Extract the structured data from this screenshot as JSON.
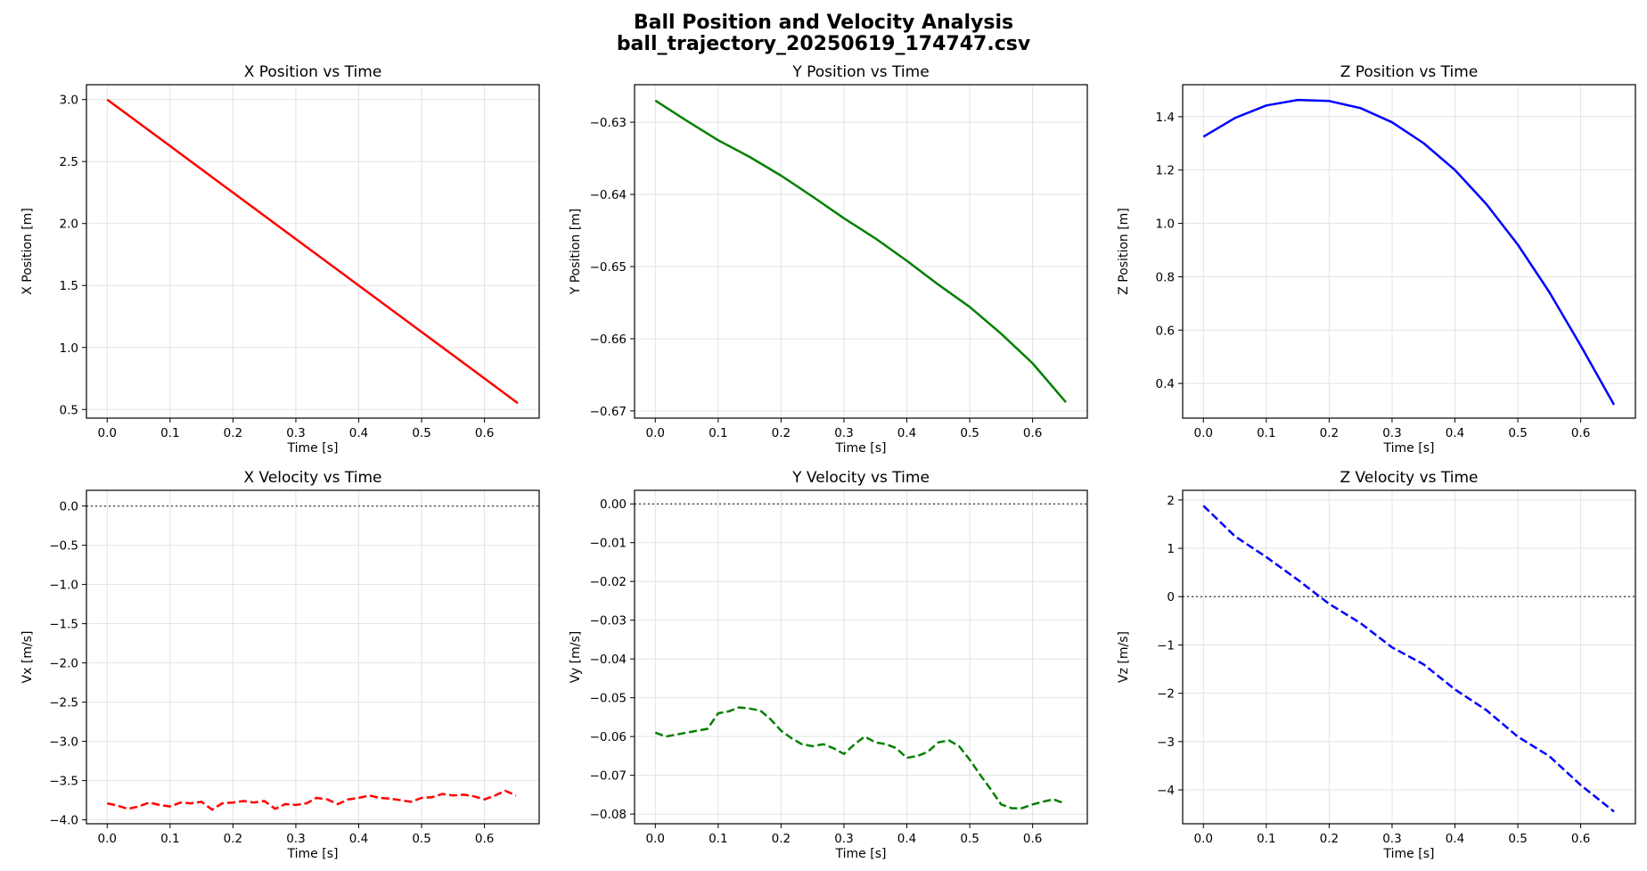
{
  "figure": {
    "title_line1": "Ball Position and Velocity Analysis",
    "title_line2": "ball_trajectory_20250619_174747.csv"
  },
  "chart_data": [
    {
      "type": "line",
      "title": "X Position vs Time",
      "xlabel": "Time [s]",
      "ylabel": "X Position [m]",
      "xlim": [
        -0.033,
        0.687
      ],
      "ylim": [
        0.43,
        3.12
      ],
      "xticks": [
        0.0,
        0.1,
        0.2,
        0.3,
        0.4,
        0.5,
        0.6
      ],
      "yticks": [
        0.5,
        1.0,
        1.5,
        2.0,
        2.5,
        3.0
      ],
      "ytick_decimals": 1,
      "grid": true,
      "series": [
        {
          "color": "#ff0000",
          "linestyle": "solid",
          "x": [
            0.0,
            0.1,
            0.2,
            0.3,
            0.4,
            0.5,
            0.6,
            0.653
          ],
          "y": [
            3.0,
            2.625,
            2.25,
            1.875,
            1.5,
            1.125,
            0.75,
            0.55
          ]
        }
      ]
    },
    {
      "type": "line",
      "title": "Y Position vs Time",
      "xlabel": "Time [s]",
      "ylabel": "Y Position [m]",
      "xlim": [
        -0.033,
        0.687
      ],
      "ylim": [
        -0.671,
        -0.6248
      ],
      "xticks": [
        0.0,
        0.1,
        0.2,
        0.3,
        0.4,
        0.5,
        0.6
      ],
      "yticks": [
        -0.67,
        -0.66,
        -0.65,
        -0.64,
        -0.63
      ],
      "ytick_decimals": 2,
      "grid": true,
      "series": [
        {
          "color": "#008000",
          "linestyle": "solid",
          "x": [
            0.0,
            0.05,
            0.1,
            0.15,
            0.2,
            0.25,
            0.3,
            0.35,
            0.4,
            0.45,
            0.5,
            0.55,
            0.6,
            0.653
          ],
          "y": [
            -0.627,
            -0.6298,
            -0.6325,
            -0.6348,
            -0.6374,
            -0.6403,
            -0.6433,
            -0.6461,
            -0.6492,
            -0.6525,
            -0.6556,
            -0.6593,
            -0.6634,
            -0.6688
          ]
        }
      ]
    },
    {
      "type": "line",
      "title": "Z Position vs Time",
      "xlabel": "Time [s]",
      "ylabel": "Z Position [m]",
      "xlim": [
        -0.033,
        0.687
      ],
      "ylim": [
        0.27,
        1.52
      ],
      "xticks": [
        0.0,
        0.1,
        0.2,
        0.3,
        0.4,
        0.5,
        0.6
      ],
      "yticks": [
        0.4,
        0.6,
        0.8,
        1.0,
        1.2,
        1.4
      ],
      "ytick_decimals": 1,
      "grid": true,
      "series": [
        {
          "color": "#0000ff",
          "linestyle": "solid",
          "x": [
            0.0,
            0.05,
            0.1,
            0.15,
            0.2,
            0.25,
            0.3,
            0.35,
            0.4,
            0.45,
            0.5,
            0.55,
            0.6,
            0.653
          ],
          "y": [
            1.325,
            1.395,
            1.442,
            1.463,
            1.459,
            1.432,
            1.379,
            1.301,
            1.2,
            1.072,
            0.92,
            0.743,
            0.542,
            0.32
          ]
        }
      ]
    },
    {
      "type": "line",
      "title": "X Velocity vs Time",
      "xlabel": "Time [s]",
      "ylabel": "Vx [m/s]",
      "xlim": [
        -0.033,
        0.687
      ],
      "ylim": [
        -4.05,
        0.2
      ],
      "xticks": [
        0.0,
        0.1,
        0.2,
        0.3,
        0.4,
        0.5,
        0.6
      ],
      "yticks": [
        -4.0,
        -3.5,
        -3.0,
        -2.5,
        -2.0,
        -1.5,
        -1.0,
        -0.5,
        0.0
      ],
      "ytick_decimals": 1,
      "grid": true,
      "zero_line": true,
      "series": [
        {
          "color": "#ff0000",
          "linestyle": "dashed",
          "x": [
            0.0,
            0.017,
            0.033,
            0.05,
            0.067,
            0.083,
            0.1,
            0.117,
            0.133,
            0.15,
            0.167,
            0.183,
            0.2,
            0.217,
            0.233,
            0.25,
            0.267,
            0.283,
            0.3,
            0.317,
            0.333,
            0.35,
            0.367,
            0.383,
            0.4,
            0.417,
            0.433,
            0.45,
            0.467,
            0.483,
            0.5,
            0.517,
            0.533,
            0.55,
            0.567,
            0.583,
            0.6,
            0.617,
            0.633,
            0.65
          ],
          "y": [
            -3.79,
            -3.82,
            -3.86,
            -3.83,
            -3.78,
            -3.81,
            -3.83,
            -3.78,
            -3.79,
            -3.77,
            -3.87,
            -3.79,
            -3.78,
            -3.76,
            -3.78,
            -3.76,
            -3.86,
            -3.8,
            -3.81,
            -3.79,
            -3.72,
            -3.74,
            -3.8,
            -3.74,
            -3.72,
            -3.69,
            -3.72,
            -3.73,
            -3.75,
            -3.77,
            -3.72,
            -3.71,
            -3.67,
            -3.69,
            -3.68,
            -3.7,
            -3.74,
            -3.69,
            -3.63,
            -3.69
          ]
        }
      ]
    },
    {
      "type": "line",
      "title": "Y Velocity vs Time",
      "xlabel": "Time [s]",
      "ylabel": "Vy [m/s]",
      "xlim": [
        -0.033,
        0.687
      ],
      "ylim": [
        -0.0825,
        0.0035
      ],
      "xticks": [
        0.0,
        0.1,
        0.2,
        0.3,
        0.4,
        0.5,
        0.6
      ],
      "yticks": [
        -0.08,
        -0.07,
        -0.06,
        -0.05,
        -0.04,
        -0.03,
        -0.02,
        -0.01,
        0.0
      ],
      "ytick_decimals": 2,
      "grid": true,
      "zero_line": true,
      "series": [
        {
          "color": "#008000",
          "linestyle": "dashed",
          "x": [
            0.0,
            0.017,
            0.033,
            0.05,
            0.067,
            0.083,
            0.1,
            0.117,
            0.133,
            0.15,
            0.167,
            0.183,
            0.2,
            0.217,
            0.233,
            0.25,
            0.267,
            0.283,
            0.3,
            0.317,
            0.333,
            0.35,
            0.367,
            0.383,
            0.4,
            0.417,
            0.433,
            0.45,
            0.467,
            0.483,
            0.5,
            0.517,
            0.533,
            0.55,
            0.567,
            0.583,
            0.6,
            0.617,
            0.633,
            0.65
          ],
          "y": [
            -0.059,
            -0.06,
            -0.0595,
            -0.059,
            -0.0585,
            -0.058,
            -0.054,
            -0.0535,
            -0.0525,
            -0.0528,
            -0.0533,
            -0.0555,
            -0.0585,
            -0.0605,
            -0.062,
            -0.0625,
            -0.062,
            -0.063,
            -0.0645,
            -0.062,
            -0.06,
            -0.0615,
            -0.062,
            -0.063,
            -0.0655,
            -0.065,
            -0.064,
            -0.0615,
            -0.061,
            -0.0625,
            -0.066,
            -0.07,
            -0.0735,
            -0.0775,
            -0.0785,
            -0.0785,
            -0.0775,
            -0.0768,
            -0.0762,
            -0.0772
          ]
        }
      ]
    },
    {
      "type": "line",
      "title": "Z Velocity vs Time",
      "xlabel": "Time [s]",
      "ylabel": "Vz [m/s]",
      "xlim": [
        -0.033,
        0.687
      ],
      "ylim": [
        -4.7,
        2.2
      ],
      "xticks": [
        0.0,
        0.1,
        0.2,
        0.3,
        0.4,
        0.5,
        0.6
      ],
      "yticks": [
        -4,
        -3,
        -2,
        -1,
        0,
        1,
        2
      ],
      "ytick_decimals": 0,
      "grid": true,
      "zero_line": true,
      "series": [
        {
          "color": "#0000ff",
          "linestyle": "dashed",
          "x": [
            0.0,
            0.05,
            0.1,
            0.15,
            0.2,
            0.25,
            0.3,
            0.35,
            0.4,
            0.45,
            0.5,
            0.55,
            0.6,
            0.653
          ],
          "y": [
            1.88,
            1.25,
            0.82,
            0.35,
            -0.15,
            -0.55,
            -1.05,
            -1.4,
            -1.92,
            -2.35,
            -2.9,
            -3.3,
            -3.9,
            -4.45
          ]
        }
      ]
    }
  ]
}
